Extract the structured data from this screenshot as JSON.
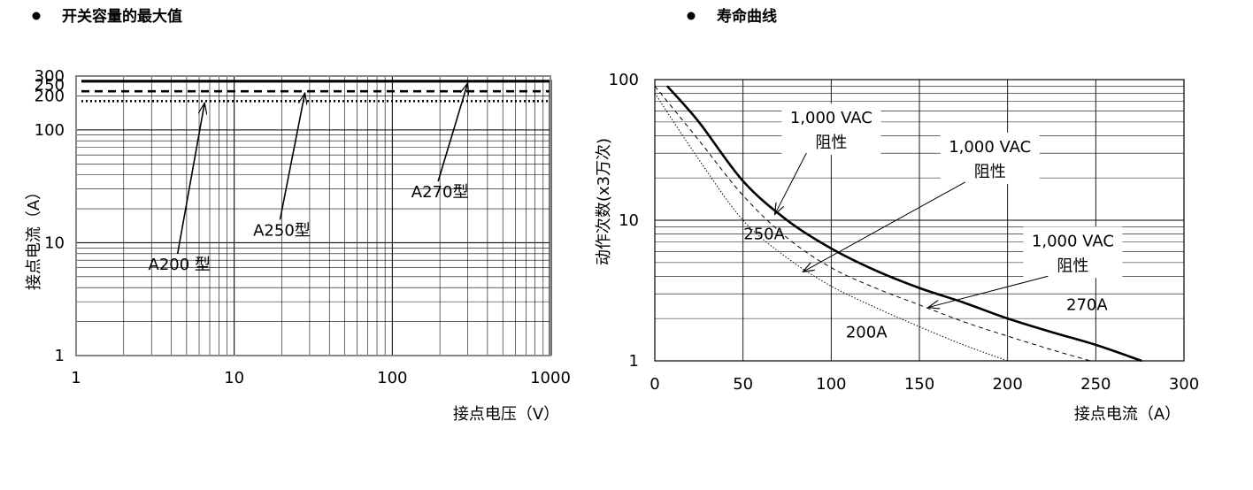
{
  "chart_data": [
    {
      "type": "line",
      "title": "开关容量的最大值",
      "xlabel": "接点电压（V）",
      "ylabel": "接点电流（A）",
      "xscale": "log",
      "yscale": "log",
      "xlim": [
        1,
        1000
      ],
      "ylim": [
        1,
        300
      ],
      "x_ticks": [
        "1",
        "10",
        "100",
        "1000"
      ],
      "y_ticks": [
        {
          "value": 1,
          "label": "1"
        },
        {
          "value": 10,
          "label": "10"
        },
        {
          "value": 100,
          "label": "100"
        },
        {
          "value": 200,
          "label": "200"
        },
        {
          "value": 250,
          "label": "250"
        },
        {
          "value": 300,
          "label": "300"
        }
      ],
      "grid": true,
      "series": [
        {
          "name": "A270型",
          "style": "solid",
          "points": [
            [
              1,
              270
            ],
            [
              1000,
              270
            ],
            [
              1000,
              1
            ]
          ]
        },
        {
          "name": "A250型",
          "style": "dashed",
          "points": [
            [
              1,
              220
            ],
            [
              1000,
              220
            ]
          ]
        },
        {
          "name": "A200 型",
          "style": "dotted",
          "points": [
            [
              1,
              180
            ],
            [
              1000,
              180
            ]
          ]
        }
      ],
      "annotations": [
        {
          "text": "A200 型",
          "target": [
            6.5,
            180
          ],
          "text_at": [
            4.5,
            8
          ]
        },
        {
          "text": "A250型",
          "target": [
            28,
            220
          ],
          "text_at": [
            20,
            16
          ]
        },
        {
          "text": "A270型",
          "target": [
            300,
            270
          ],
          "text_at": [
            200,
            35
          ]
        }
      ]
    },
    {
      "type": "line",
      "title": "寿命曲线",
      "xlabel": "接点电流（A）",
      "ylabel": "动作次数(x3万次)",
      "xscale": "linear",
      "yscale": "log",
      "xlim": [
        0,
        300
      ],
      "ylim": [
        1,
        100
      ],
      "x_ticks": [
        "0",
        "50",
        "100",
        "150",
        "200",
        "250",
        "300"
      ],
      "y_ticks": [
        {
          "value": 1,
          "label": "1"
        },
        {
          "value": 10,
          "label": "10"
        },
        {
          "value": 100,
          "label": "100"
        }
      ],
      "grid": true,
      "series": [
        {
          "name": "270A",
          "style": "solid",
          "points": [
            [
              7,
              90
            ],
            [
              25,
              50
            ],
            [
              50,
              19
            ],
            [
              75,
              10
            ],
            [
              100,
              6.3
            ],
            [
              125,
              4.4
            ],
            [
              150,
              3.3
            ],
            [
              175,
              2.6
            ],
            [
              200,
              2.0
            ],
            [
              225,
              1.6
            ],
            [
              250,
              1.3
            ],
            [
              276,
              1.0
            ]
          ]
        },
        {
          "name": "250A",
          "style": "dashed",
          "points": [
            [
              0,
              90
            ],
            [
              25,
              37
            ],
            [
              50,
              15
            ],
            [
              75,
              7.5
            ],
            [
              100,
              4.6
            ],
            [
              125,
              3.3
            ],
            [
              150,
              2.5
            ],
            [
              175,
              1.9
            ],
            [
              200,
              1.5
            ],
            [
              225,
              1.2
            ],
            [
              247,
              1.0
            ]
          ]
        },
        {
          "name": "200A",
          "style": "dotted",
          "points": [
            [
              0,
              80
            ],
            [
              25,
              27
            ],
            [
              50,
              10
            ],
            [
              75,
              5.4
            ],
            [
              100,
              3.4
            ],
            [
              125,
              2.4
            ],
            [
              150,
              1.75
            ],
            [
              175,
              1.3
            ],
            [
              200,
              1.0
            ]
          ]
        }
      ],
      "annotations": [
        {
          "text": "1,000 VAC",
          "text2": "阻性",
          "target": [
            68,
            11
          ],
          "text_at": [
            100,
            45
          ]
        },
        {
          "text": "1,000 VAC",
          "text2": "阻性",
          "target": [
            84,
            4.3
          ],
          "text_at": [
            190,
            28
          ]
        },
        {
          "text": "1,000 VAC",
          "text2": "阻性",
          "target": [
            155,
            2.4
          ],
          "text_at": [
            237,
            6
          ]
        },
        {
          "text": "250A",
          "text_at": [
            62,
            8
          ]
        },
        {
          "text": "270A",
          "text_at": [
            245,
            2.5
          ]
        },
        {
          "text": "200A",
          "text_at": [
            120,
            1.6
          ]
        }
      ]
    }
  ]
}
